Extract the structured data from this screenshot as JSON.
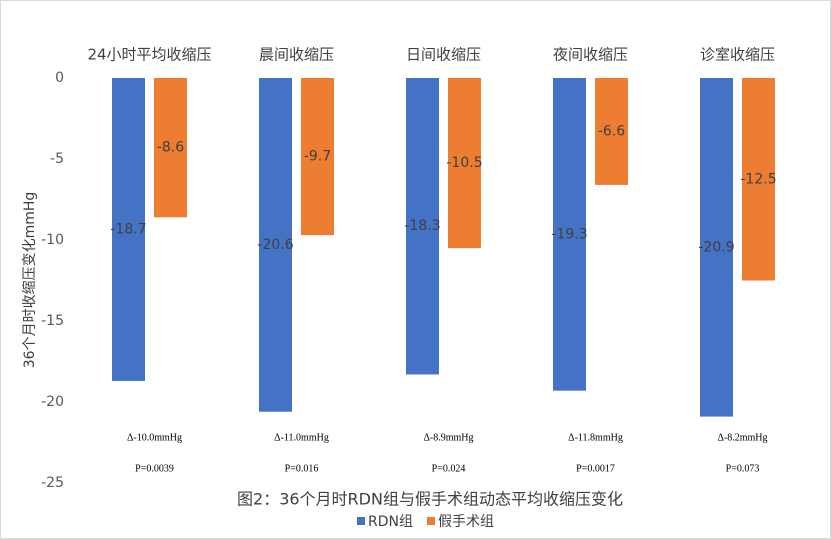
{
  "chart_data": {
    "type": "bar",
    "title": "图2：36个月时RDN组与假手术组动态平均收缩压变化",
    "y_label": "36个月时收缩压变化mmHg",
    "categories": [
      "24小时平均收缩压",
      "晨间收缩压",
      "日间收缩压",
      "夜间收缩压",
      "诊室收缩压"
    ],
    "series": [
      {
        "name": "RDN组",
        "color": "#4472c4",
        "values": [
          -18.7,
          -20.6,
          -18.3,
          -19.3,
          -20.9
        ]
      },
      {
        "name": "假手术组",
        "color": "#ed7d31",
        "values": [
          -8.6,
          -9.7,
          -10.5,
          -6.6,
          -12.5
        ]
      }
    ],
    "delta_labels": [
      "Δ-10.0mmHg",
      "Δ-11.0mmHg",
      "Δ-8.9mmHg",
      "Δ-11.8mmHg",
      "Δ-8.2mmHg"
    ],
    "p_labels": [
      "P=0.0039",
      "P=0.016",
      "P=0.024",
      "P=0.0017",
      "P=0.073"
    ],
    "ylim": [
      -25,
      0
    ],
    "yticks": [
      0,
      -5,
      -10,
      -15,
      -20,
      -25
    ],
    "grid": false,
    "legend": "bottom"
  }
}
